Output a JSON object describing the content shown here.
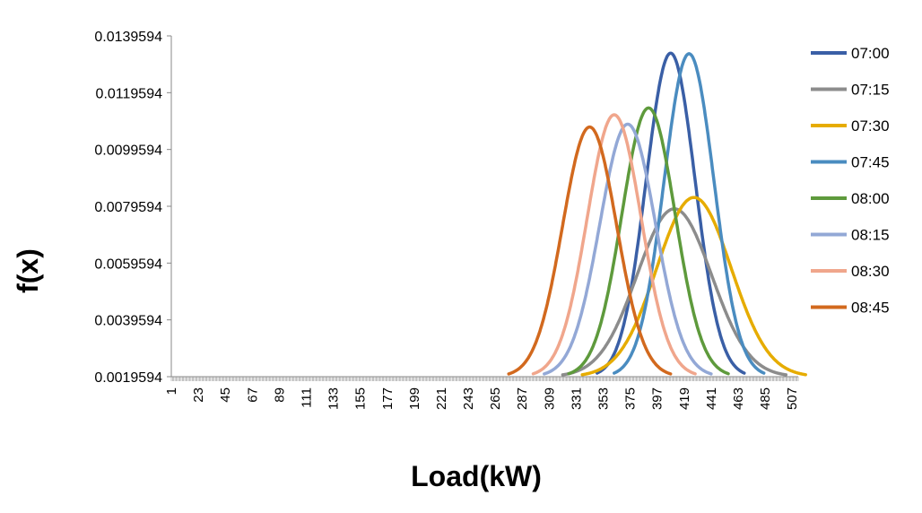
{
  "chart_data": {
    "type": "line",
    "xlabel": "Load(kW)",
    "ylabel": "f(x)",
    "x_tick_labels": [
      "1",
      "23",
      "45",
      "67",
      "89",
      "111",
      "133",
      "155",
      "177",
      "199",
      "221",
      "243",
      "265",
      "287",
      "309",
      "331",
      "353",
      "375",
      "397",
      "419",
      "441",
      "463",
      "485",
      "507"
    ],
    "y_tick_labels": [
      "0.0019594",
      "0.0039594",
      "0.0059594",
      "0.0079594",
      "0.0099594",
      "0.0119594",
      "0.0139594"
    ],
    "xlim": [
      1,
      512
    ],
    "ylim": [
      0.0019594,
      0.0139594
    ],
    "baseline": 0.0019594,
    "legend_position": "right",
    "series": [
      {
        "name": "07:00",
        "color": "#3A5FA6",
        "mean": 408,
        "peak": 0.01335,
        "min": 348,
        "max": 468
      },
      {
        "name": "07:15",
        "color": "#8C8C8C",
        "mean": 411,
        "peak": 0.00787,
        "min": 320,
        "max": 502
      },
      {
        "name": "07:30",
        "color": "#E6AC00",
        "mean": 427,
        "peak": 0.00827,
        "min": 336,
        "max": 518
      },
      {
        "name": "07:45",
        "color": "#4A8CC0",
        "mean": 423,
        "peak": 0.01333,
        "min": 362,
        "max": 484
      },
      {
        "name": "08:00",
        "color": "#5E9A3C",
        "mean": 390,
        "peak": 0.01142,
        "min": 325,
        "max": 455
      },
      {
        "name": "08:15",
        "color": "#93A8D6",
        "mean": 373,
        "peak": 0.01085,
        "min": 305,
        "max": 441
      },
      {
        "name": "08:30",
        "color": "#F0A68C",
        "mean": 362,
        "peak": 0.01118,
        "min": 296,
        "max": 428
      },
      {
        "name": "08:45",
        "color": "#D2691E",
        "mean": 342,
        "peak": 0.01075,
        "min": 276,
        "max": 408
      }
    ]
  }
}
